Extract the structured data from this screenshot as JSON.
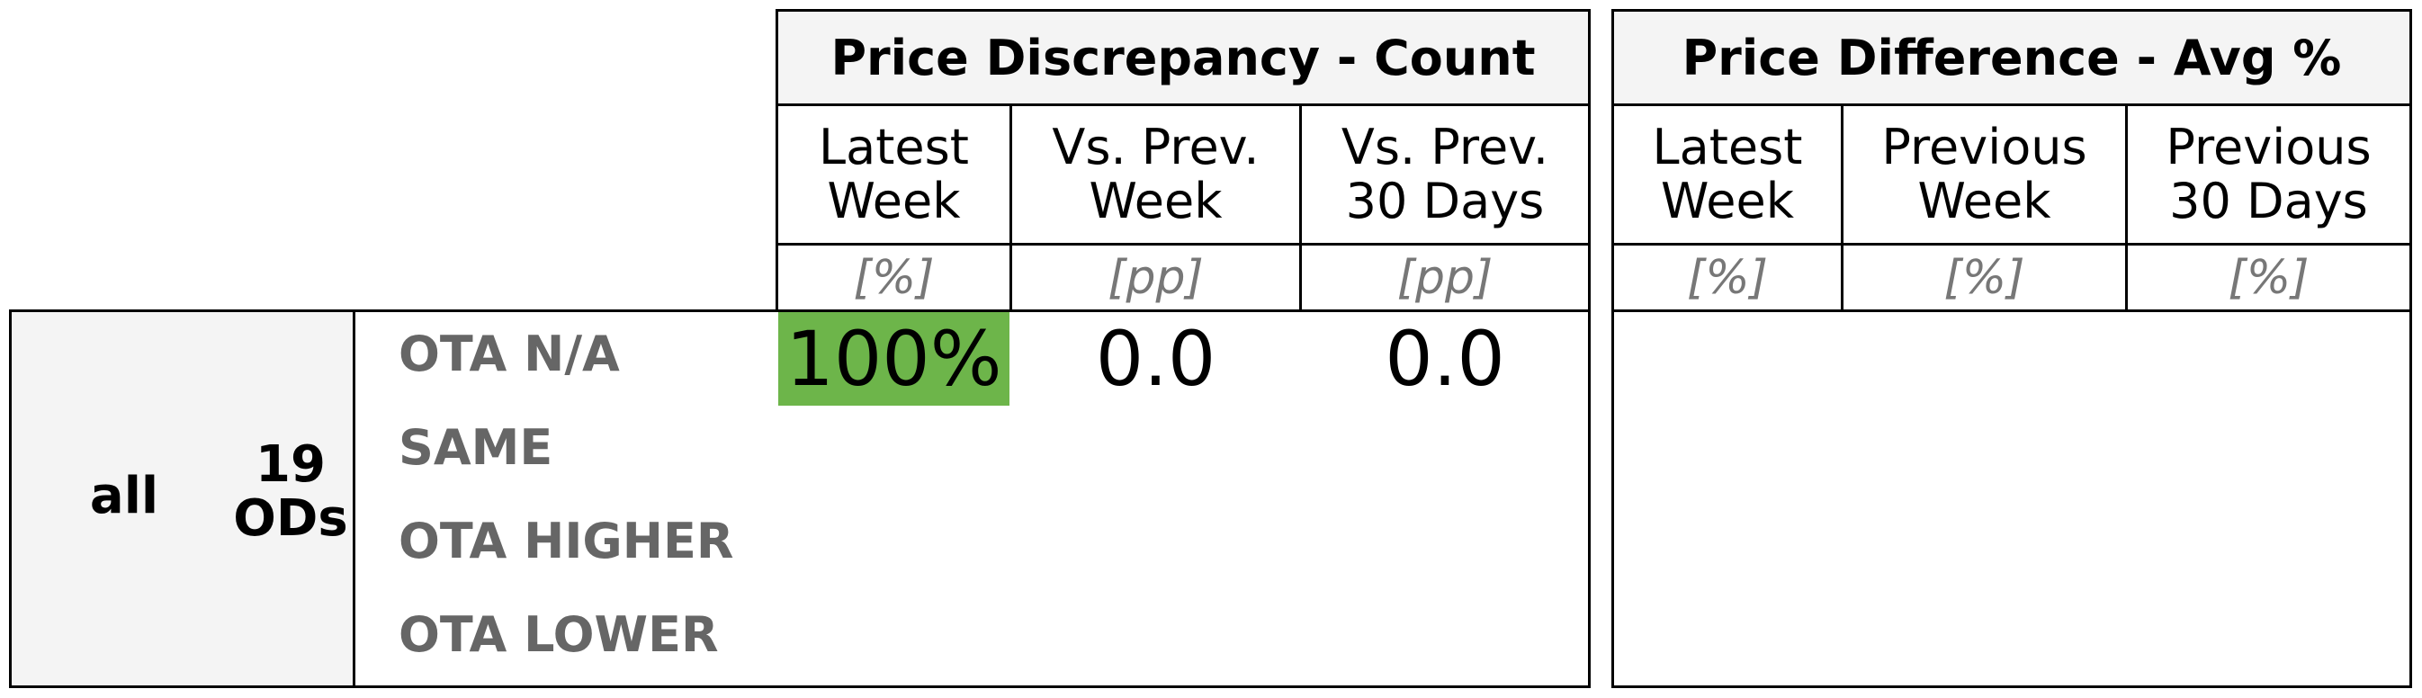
{
  "chart_data": {
    "type": "table",
    "sections": [
      {
        "title": "Price Discrepancy - Count",
        "columns": [
          "Latest\nWeek",
          "Vs. Prev.\nWeek",
          "Vs. Prev.\n30 Days"
        ],
        "units": [
          "[%]",
          "[pp]",
          "[pp]"
        ]
      },
      {
        "title": "Price Difference - Avg %",
        "columns": [
          "Latest\nWeek",
          "Previous\nWeek",
          "Previous\n30 Days"
        ],
        "units": [
          "[%]",
          "[%]",
          "[%]"
        ]
      }
    ],
    "group": {
      "label": "all",
      "count": "19\nODs"
    },
    "rows": [
      {
        "label": "OTA N/A",
        "discrepancy": [
          "100%",
          "0.0",
          "0.0"
        ],
        "difference": [
          "",
          "",
          ""
        ]
      },
      {
        "label": "SAME",
        "discrepancy": [
          "",
          "",
          ""
        ],
        "difference": [
          "",
          "",
          ""
        ]
      },
      {
        "label": "OTA HIGHER",
        "discrepancy": [
          "",
          "",
          ""
        ],
        "difference": [
          "",
          "",
          ""
        ]
      },
      {
        "label": "OTA LOWER",
        "discrepancy": [
          "",
          "",
          ""
        ],
        "difference": [
          "",
          "",
          ""
        ]
      }
    ],
    "highlight_color": "#6db54a"
  }
}
